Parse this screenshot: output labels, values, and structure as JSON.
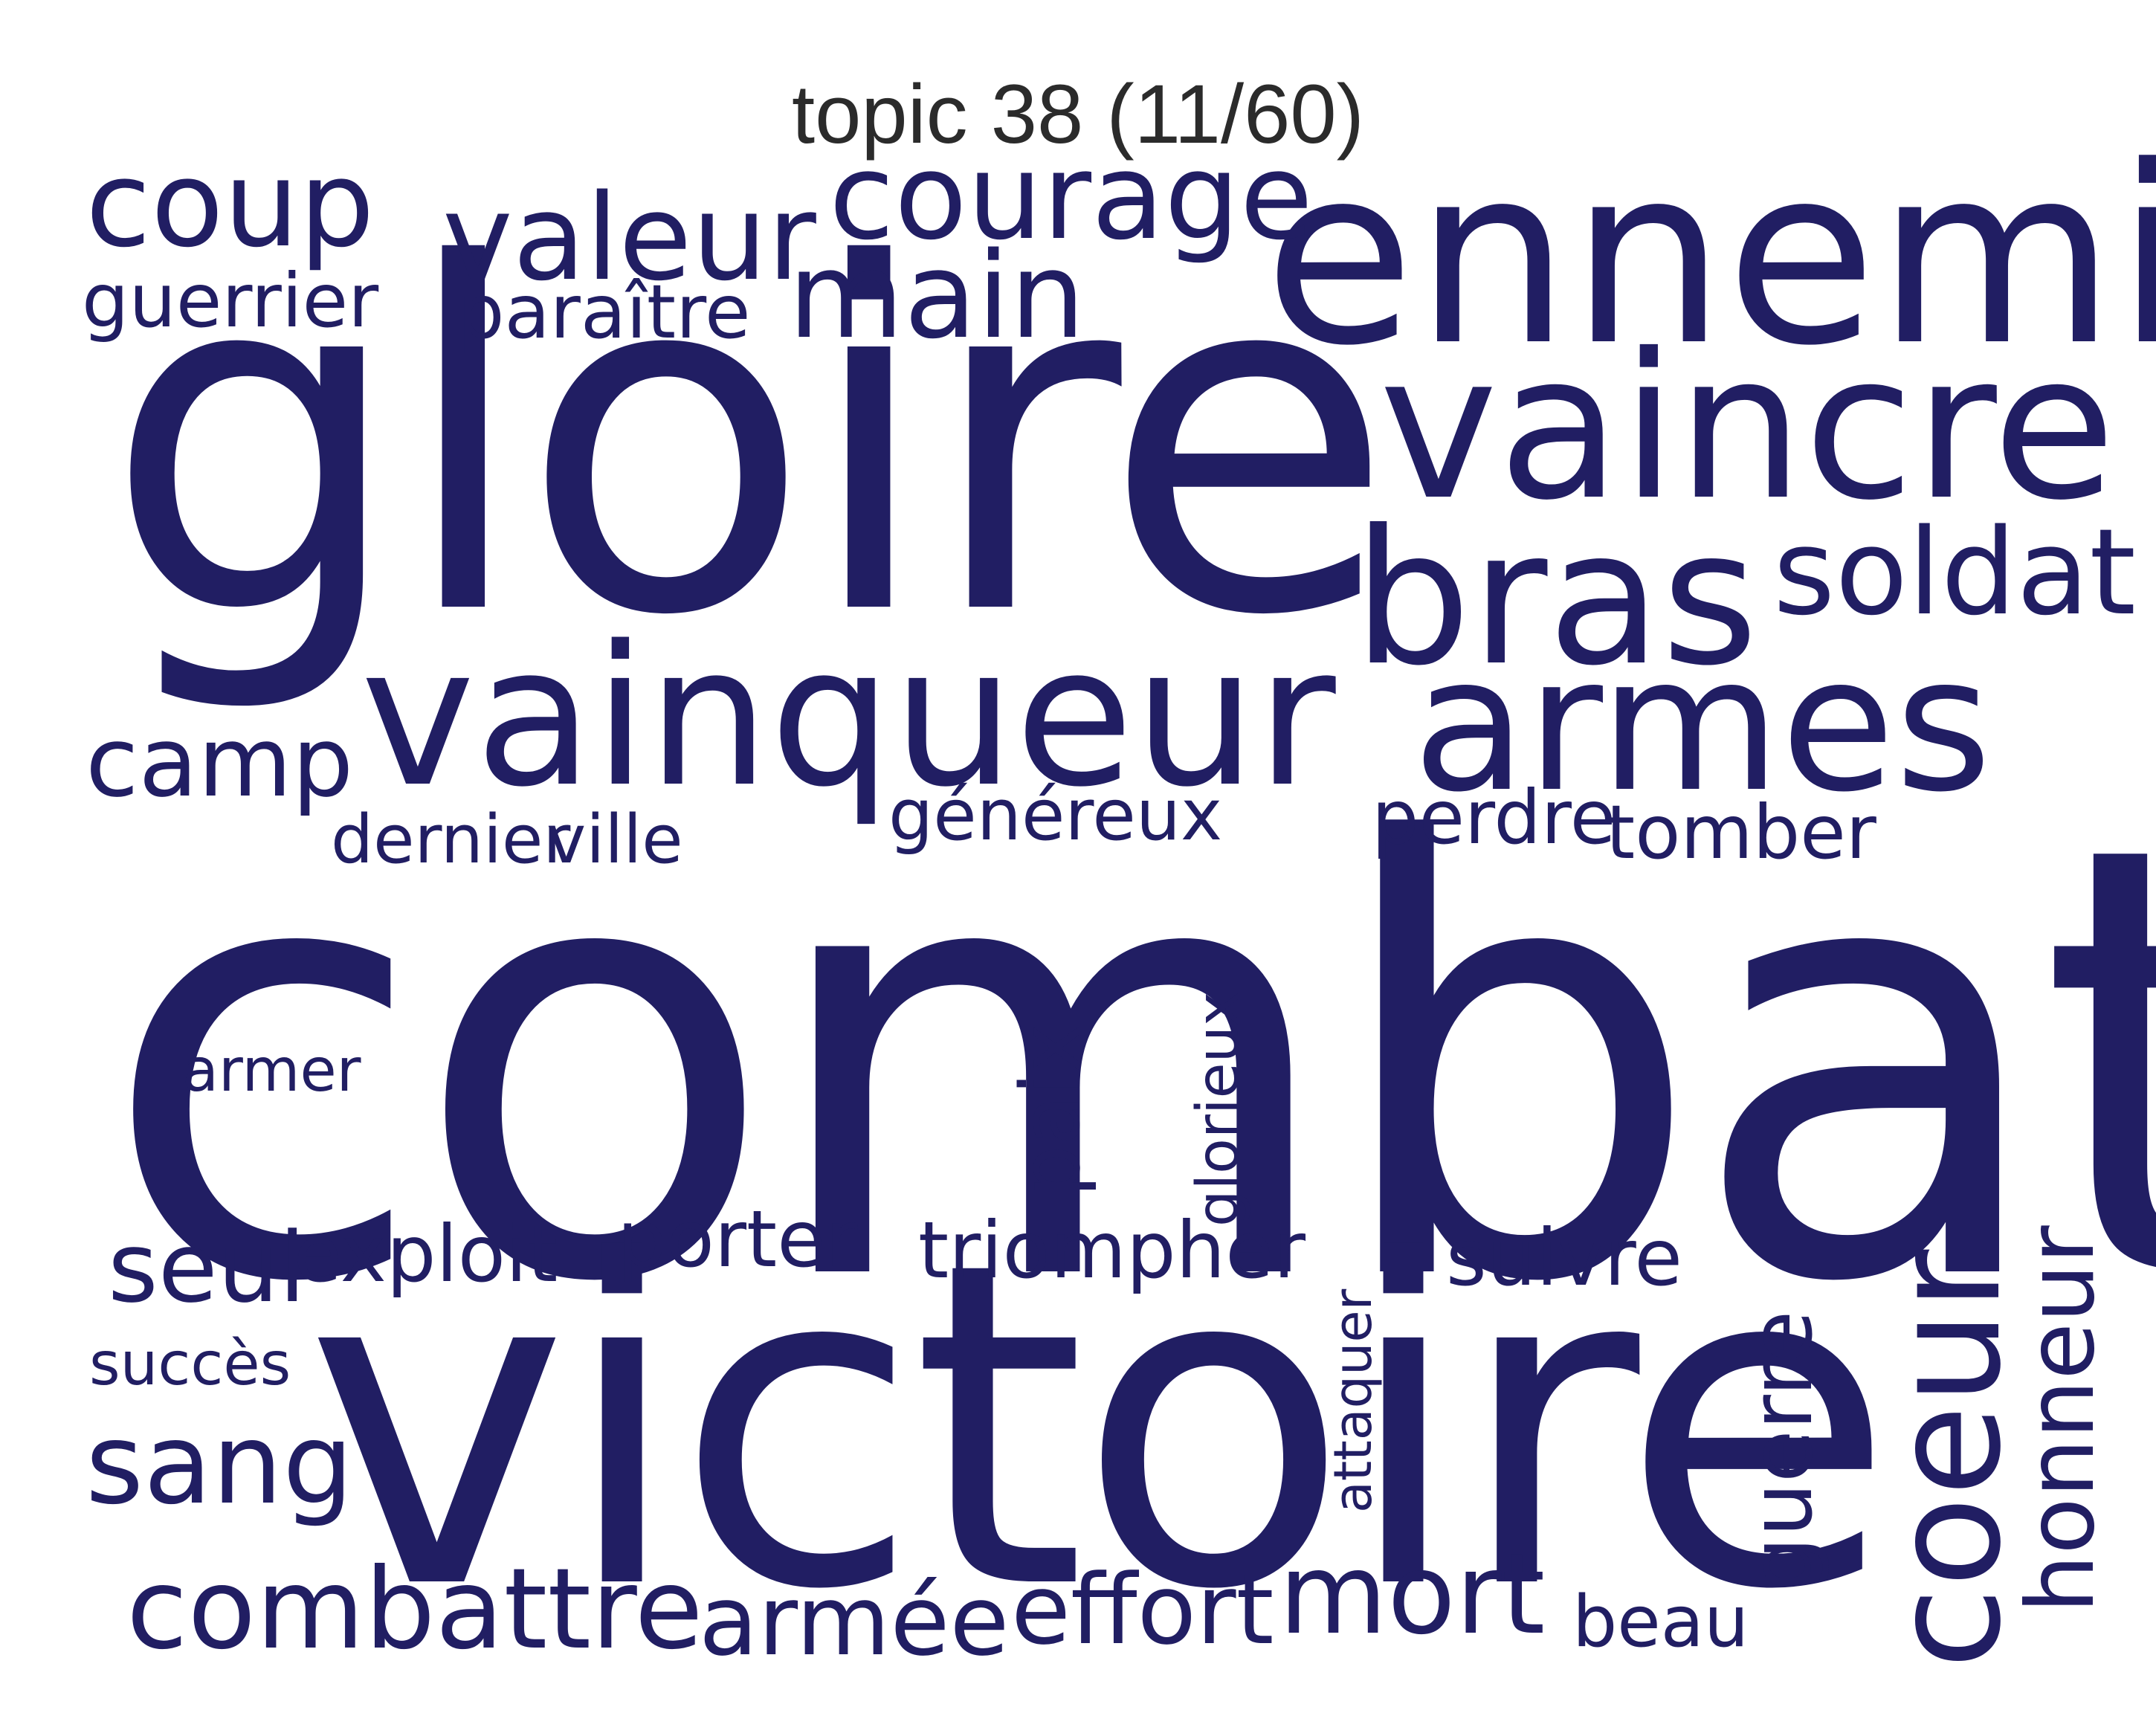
{
  "title": "topic 38 (11/60)",
  "word_color": "#211e63",
  "words": {
    "combat": "combat",
    "gloire": "gloire",
    "victoire": "victoire",
    "ennemi": "ennemi",
    "vaincre": "vaincre",
    "vainqueur": "vainqueur",
    "armes": "armes",
    "bras": "bras",
    "coeur": "coeur",
    "courage": "courage",
    "valeur": "valeur",
    "main": "main",
    "coup": "coup",
    "soldat": "soldat",
    "combattre": "combattre",
    "mort": "mort",
    "effort": "effort",
    "armee": "armée",
    "honneur": "honneur",
    "guerre": "guerre",
    "sang": "sang",
    "camp": "camp",
    "seul": "seul",
    "guerrier": "guerrier",
    "paraitre": "paraître",
    "paix": "paix",
    "genereux": "généreux",
    "perdre": "perdre",
    "tomber": "tomber",
    "dernier": "dernier",
    "ville": "ville",
    "porter": "porter",
    "triompher": "triompher",
    "exploit": "exploit",
    "suivre": "suivre",
    "beau": "beau",
    "glorieux": "glorieux",
    "armer": "armer",
    "attaquer": "attaquer",
    "succes": "succès"
  }
}
